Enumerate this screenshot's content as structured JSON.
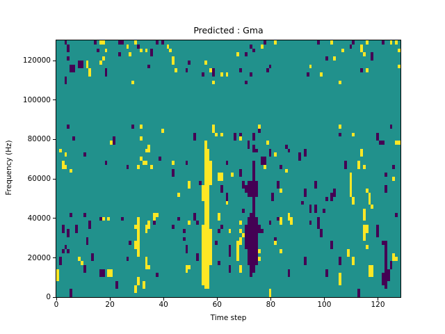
{
  "chart_data": {
    "type": "heatmap",
    "title": "Predicted : Gma",
    "xlabel": "Time step",
    "ylabel": "Frequency (Hz)",
    "x_ticks": [
      0,
      20,
      40,
      60,
      80,
      100,
      120
    ],
    "y_ticks": [
      0,
      20000,
      40000,
      60000,
      80000,
      100000,
      120000
    ],
    "xlim": [
      0,
      128.4
    ],
    "ylim": [
      0,
      131072
    ],
    "grid": {
      "cols": 128,
      "rows": 64
    },
    "legend": "none",
    "colors": {
      "background": "#21918c",
      "high": "#fde725",
      "low": "#440154",
      "figure": "#ffffff",
      "axis": "#000000"
    },
    "cells": {
      "note": "runs are [col, rowStart, rowEnd]; col 0 = left (time 0), row 0 = bottom (freq 0); cell = 1 time step x 2048 Hz",
      "yellow_runs": [
        [
          16,
          63,
          63
        ],
        [
          17,
          63,
          63
        ],
        [
          29,
          63,
          63
        ],
        [
          26,
          62,
          62
        ],
        [
          41,
          62,
          62
        ],
        [
          42,
          61,
          61
        ],
        [
          18,
          61,
          61
        ],
        [
          31,
          61,
          61
        ],
        [
          33,
          61,
          61
        ],
        [
          27,
          60,
          60
        ],
        [
          17,
          59,
          59
        ],
        [
          11,
          57,
          58
        ],
        [
          16,
          58,
          58
        ],
        [
          12,
          55,
          56
        ],
        [
          28,
          53,
          53
        ],
        [
          81,
          63,
          63
        ],
        [
          76,
          62,
          62
        ],
        [
          67,
          60,
          60
        ],
        [
          43,
          58,
          59
        ],
        [
          55,
          58,
          58
        ],
        [
          44,
          56,
          56
        ],
        [
          57,
          56,
          56
        ],
        [
          61,
          55,
          55
        ],
        [
          63,
          55,
          55
        ],
        [
          58,
          53,
          53
        ],
        [
          102,
          63,
          63
        ],
        [
          115,
          63,
          63
        ],
        [
          124,
          63,
          63
        ],
        [
          126,
          63,
          63
        ],
        [
          113,
          61,
          62
        ],
        [
          106,
          61,
          61
        ],
        [
          127,
          61,
          61
        ],
        [
          114,
          60,
          60
        ],
        [
          103,
          59,
          59
        ],
        [
          94,
          57,
          57
        ],
        [
          127,
          57,
          57
        ],
        [
          115,
          56,
          56
        ],
        [
          98,
          55,
          55
        ],
        [
          105,
          53,
          53
        ],
        [
          31,
          42,
          42
        ],
        [
          39,
          41,
          41
        ],
        [
          31,
          39,
          39
        ],
        [
          20,
          38,
          38
        ],
        [
          34,
          36,
          37
        ],
        [
          1,
          36,
          36
        ],
        [
          33,
          36,
          36
        ],
        [
          3,
          35,
          35
        ],
        [
          31,
          34,
          34
        ],
        [
          2,
          32,
          33
        ],
        [
          32,
          33,
          33
        ],
        [
          33,
          33,
          33
        ],
        [
          43,
          33,
          33
        ],
        [
          3,
          32,
          32
        ],
        [
          30,
          32,
          32
        ],
        [
          35,
          32,
          32
        ],
        [
          5,
          31,
          31
        ],
        [
          55,
          2,
          38
        ],
        [
          56,
          2,
          36
        ],
        [
          54,
          3,
          17
        ],
        [
          54,
          24,
          27
        ],
        [
          57,
          8,
          16
        ],
        [
          57,
          28,
          33
        ],
        [
          58,
          41,
          42
        ],
        [
          59,
          40,
          40
        ],
        [
          61,
          40,
          40
        ],
        [
          68,
          39,
          39
        ],
        [
          75,
          42,
          42
        ],
        [
          78,
          38,
          38
        ],
        [
          81,
          35,
          35
        ],
        [
          77,
          32,
          32
        ],
        [
          60,
          29,
          30
        ],
        [
          61,
          29,
          30
        ],
        [
          65,
          30,
          30
        ],
        [
          49,
          27,
          28
        ],
        [
          45,
          25,
          25
        ],
        [
          63,
          23,
          23
        ],
        [
          85,
          31,
          31
        ],
        [
          83,
          26,
          26
        ],
        [
          105,
          42,
          42
        ],
        [
          110,
          40,
          40
        ],
        [
          126,
          38,
          38
        ],
        [
          127,
          38,
          38
        ],
        [
          113,
          35,
          36
        ],
        [
          112,
          32,
          33
        ],
        [
          114,
          32,
          32
        ],
        [
          109,
          25,
          30
        ],
        [
          125,
          29,
          29
        ],
        [
          115,
          26,
          26
        ],
        [
          116,
          23,
          25
        ],
        [
          110,
          23,
          24
        ],
        [
          117,
          22,
          22
        ],
        [
          114,
          21,
          21
        ],
        [
          36,
          19,
          20
        ],
        [
          37,
          20,
          20
        ],
        [
          17,
          19,
          19
        ],
        [
          19,
          19,
          19
        ],
        [
          30,
          10,
          19
        ],
        [
          29,
          17,
          17
        ],
        [
          29,
          12,
          13
        ],
        [
          33,
          16,
          17
        ],
        [
          34,
          17,
          18
        ],
        [
          33,
          8,
          9
        ],
        [
          33,
          7,
          7
        ],
        [
          34,
          7,
          7
        ],
        [
          8,
          9,
          9
        ],
        [
          9,
          8,
          8
        ],
        [
          19,
          5,
          6
        ],
        [
          20,
          5,
          6
        ],
        [
          0,
          4,
          6
        ],
        [
          30,
          3,
          4
        ],
        [
          32,
          2,
          3
        ],
        [
          29,
          1,
          2
        ],
        [
          60,
          19,
          20
        ],
        [
          49,
          18,
          18
        ],
        [
          68,
          18,
          18
        ],
        [
          83,
          18,
          19
        ],
        [
          64,
          16,
          16
        ],
        [
          68,
          16,
          16
        ],
        [
          69,
          15,
          15
        ],
        [
          68,
          13,
          14
        ],
        [
          67,
          9,
          13
        ],
        [
          75,
          11,
          11
        ],
        [
          75,
          9,
          9
        ],
        [
          83,
          11,
          11
        ],
        [
          81,
          13,
          13
        ],
        [
          48,
          6,
          7
        ],
        [
          49,
          7,
          7
        ],
        [
          68,
          6,
          7
        ],
        [
          79,
          0,
          1
        ],
        [
          86,
          19,
          20
        ],
        [
          87,
          18,
          19
        ],
        [
          114,
          19,
          20
        ],
        [
          114,
          14,
          17
        ],
        [
          115,
          16,
          17
        ],
        [
          115,
          12,
          12
        ],
        [
          108,
          10,
          11
        ],
        [
          110,
          8,
          9
        ],
        [
          125,
          9,
          10
        ],
        [
          126,
          9,
          9
        ],
        [
          116,
          5,
          7
        ],
        [
          117,
          5,
          7
        ],
        [
          105,
          3,
          5
        ]
      ],
      "dark_runs": [
        [
          3,
          63,
          63
        ],
        [
          14,
          63,
          63
        ],
        [
          23,
          63,
          63
        ],
        [
          24,
          63,
          63
        ],
        [
          37,
          63,
          63
        ],
        [
          39,
          63,
          63
        ],
        [
          4,
          61,
          62
        ],
        [
          30,
          62,
          62
        ],
        [
          15,
          61,
          61
        ],
        [
          35,
          60,
          61
        ],
        [
          23,
          60,
          60
        ],
        [
          4,
          59,
          59
        ],
        [
          8,
          57,
          58
        ],
        [
          9,
          57,
          58
        ],
        [
          5,
          56,
          57
        ],
        [
          6,
          56,
          57
        ],
        [
          18,
          55,
          56
        ],
        [
          34,
          57,
          57
        ],
        [
          3,
          53,
          54
        ],
        [
          77,
          63,
          63
        ],
        [
          72,
          62,
          62
        ],
        [
          73,
          61,
          61
        ],
        [
          70,
          60,
          60
        ],
        [
          49,
          58,
          58
        ],
        [
          48,
          56,
          56
        ],
        [
          58,
          55,
          56
        ],
        [
          68,
          56,
          56
        ],
        [
          78,
          56,
          56
        ],
        [
          79,
          57,
          57
        ],
        [
          54,
          55,
          55
        ],
        [
          72,
          55,
          55
        ],
        [
          70,
          53,
          53
        ],
        [
          97,
          63,
          63
        ],
        [
          110,
          63,
          63
        ],
        [
          121,
          63,
          63
        ],
        [
          109,
          62,
          62
        ],
        [
          117,
          59,
          60
        ],
        [
          100,
          59,
          59
        ],
        [
          113,
          56,
          56
        ],
        [
          93,
          55,
          55
        ],
        [
          4,
          42,
          42
        ],
        [
          28,
          42,
          42
        ],
        [
          6,
          39,
          39
        ],
        [
          21,
          38,
          39
        ],
        [
          10,
          35,
          35
        ],
        [
          18,
          33,
          33
        ],
        [
          38,
          34,
          34
        ],
        [
          26,
          32,
          32
        ],
        [
          51,
          39,
          40
        ],
        [
          66,
          39,
          40
        ],
        [
          68,
          40,
          40
        ],
        [
          75,
          41,
          41
        ],
        [
          71,
          37,
          38
        ],
        [
          74,
          36,
          36
        ],
        [
          76,
          33,
          34
        ],
        [
          77,
          33,
          34
        ],
        [
          43,
          30,
          31
        ],
        [
          48,
          33,
          33
        ],
        [
          63,
          33,
          33
        ],
        [
          61,
          26,
          27
        ],
        [
          63,
          24,
          25
        ],
        [
          68,
          30,
          31
        ],
        [
          69,
          27,
          28
        ],
        [
          53,
          28,
          28
        ],
        [
          79,
          35,
          36
        ],
        [
          85,
          37,
          37
        ],
        [
          83,
          32,
          32
        ],
        [
          82,
          27,
          28
        ],
        [
          80,
          24,
          25
        ],
        [
          69,
          21,
          21
        ],
        [
          70,
          12,
          17
        ],
        [
          70,
          26,
          27
        ],
        [
          71,
          8,
          19
        ],
        [
          71,
          25,
          28
        ],
        [
          72,
          5,
          20
        ],
        [
          72,
          25,
          28
        ],
        [
          73,
          6,
          33
        ],
        [
          73,
          36,
          37
        ],
        [
          73,
          39,
          40
        ],
        [
          74,
          8,
          19
        ],
        [
          74,
          25,
          28
        ],
        [
          75,
          16,
          17
        ],
        [
          76,
          16,
          16
        ],
        [
          51,
          19,
          20
        ],
        [
          45,
          19,
          19
        ],
        [
          52,
          18,
          18
        ],
        [
          79,
          18,
          18
        ],
        [
          82,
          19,
          19
        ],
        [
          43,
          17,
          17
        ],
        [
          61,
          17,
          17
        ],
        [
          60,
          16,
          16
        ],
        [
          47,
          16,
          16
        ],
        [
          56,
          15,
          15
        ],
        [
          47,
          14,
          14
        ],
        [
          81,
          14,
          14
        ],
        [
          59,
          13,
          13
        ],
        [
          48,
          11,
          12
        ],
        [
          64,
          10,
          12
        ],
        [
          52,
          9,
          10
        ],
        [
          64,
          6,
          7
        ],
        [
          60,
          8,
          8
        ],
        [
          126,
          20,
          20
        ],
        [
          97,
          17,
          19
        ],
        [
          94,
          18,
          18
        ],
        [
          98,
          15,
          16
        ],
        [
          119,
          15,
          17
        ],
        [
          102,
          12,
          13
        ],
        [
          121,
          13,
          13
        ],
        [
          122,
          2,
          13
        ],
        [
          121,
          3,
          5
        ],
        [
          123,
          4,
          6
        ],
        [
          124,
          7,
          8
        ],
        [
          105,
          8,
          9
        ],
        [
          92,
          8,
          9
        ],
        [
          86,
          5,
          6
        ],
        [
          100,
          5,
          6
        ],
        [
          112,
          0,
          1
        ],
        [
          124,
          42,
          42
        ],
        [
          105,
          40,
          40
        ],
        [
          119,
          39,
          40
        ],
        [
          120,
          38,
          38
        ],
        [
          121,
          38,
          38
        ],
        [
          86,
          36,
          36
        ],
        [
          92,
          35,
          36
        ],
        [
          90,
          34,
          35
        ],
        [
          107,
          32,
          33
        ],
        [
          125,
          32,
          32
        ],
        [
          122,
          30,
          30
        ],
        [
          96,
          27,
          28
        ],
        [
          92,
          25,
          26
        ],
        [
          103,
          25,
          26
        ],
        [
          102,
          24,
          25
        ],
        [
          100,
          24,
          24
        ],
        [
          122,
          26,
          27
        ],
        [
          91,
          23,
          23
        ],
        [
          94,
          21,
          22
        ],
        [
          96,
          21,
          22
        ],
        [
          99,
          21,
          21
        ],
        [
          5,
          20,
          20
        ],
        [
          10,
          20,
          20
        ],
        [
          16,
          19,
          19
        ],
        [
          24,
          19,
          19
        ],
        [
          12,
          17,
          18
        ],
        [
          36,
          18,
          18
        ],
        [
          2,
          16,
          17
        ],
        [
          7,
          16,
          17
        ],
        [
          4,
          15,
          16
        ],
        [
          11,
          13,
          14
        ],
        [
          27,
          13,
          13
        ],
        [
          3,
          12,
          12
        ],
        [
          2,
          11,
          11
        ],
        [
          4,
          11,
          11
        ],
        [
          13,
          10,
          10
        ],
        [
          1,
          8,
          9
        ],
        [
          13,
          9,
          9
        ],
        [
          26,
          9,
          9
        ],
        [
          10,
          6,
          7
        ],
        [
          16,
          5,
          6
        ],
        [
          17,
          5,
          6
        ],
        [
          37,
          5,
          5
        ],
        [
          22,
          2,
          3
        ],
        [
          5,
          0,
          1
        ]
      ]
    }
  }
}
